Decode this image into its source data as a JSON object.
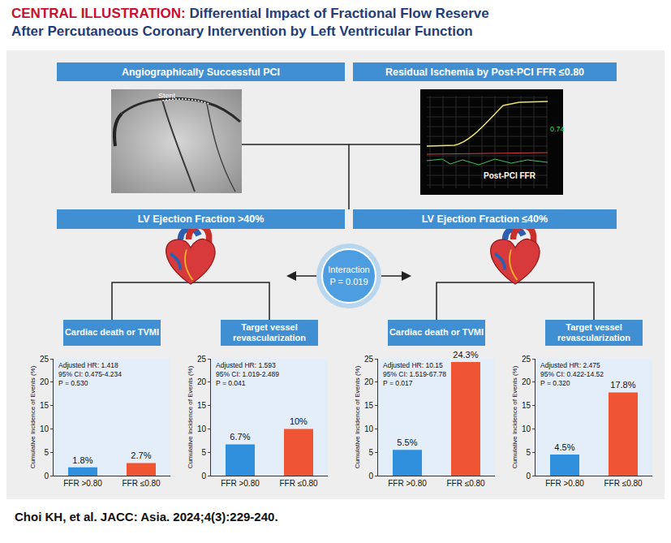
{
  "header": {
    "label": "CENTRAL ILLUSTRATION:",
    "title_lines": [
      "Differential Impact of Fractional Flow Reserve",
      "After Percutaneous Coronary Intervention by Left Ventricular Function"
    ]
  },
  "top_banners": [
    "Angiographically Successful PCI",
    "Residual Ischemia by Post-PCI FFR ≤0.80"
  ],
  "images": {
    "angiogram_label": "Stent",
    "monitor_label": "Post-PCI FFR",
    "monitor_value": "0.74"
  },
  "lv_banners": [
    "LV Ejection Fraction >40%",
    "LV Ejection Fraction ≤40%"
  ],
  "interaction": {
    "label": "Interaction",
    "p": "P = 0.019"
  },
  "chart_data": [
    {
      "type": "bar",
      "title": "Cardiac death or TVMI",
      "categories": [
        "FFR >0.80",
        "FFR ≤0.80"
      ],
      "values": [
        1.8,
        2.7
      ],
      "value_labels": [
        "1.8%",
        "2.7%"
      ],
      "colors": [
        "#2f8fdd",
        "#ef5533"
      ],
      "ylim": [
        0,
        25
      ],
      "yticks": [
        0,
        5,
        10,
        15,
        20,
        25
      ],
      "ylabel": "Cumulative Incidence of Events (%)",
      "annotations": [
        "Adjusted HR: 1.418",
        "95% CI: 0.475-4.234",
        "P = 0.530"
      ],
      "data_labels": true
    },
    {
      "type": "bar",
      "title": "Target vessel revascularization",
      "categories": [
        "FFR >0.80",
        "FFR ≤0.80"
      ],
      "values": [
        6.7,
        10
      ],
      "value_labels": [
        "6.7%",
        "10%"
      ],
      "colors": [
        "#2f8fdd",
        "#ef5533"
      ],
      "ylim": [
        0,
        25
      ],
      "yticks": [
        0,
        5,
        10,
        15,
        20,
        25
      ],
      "ylabel": "Cumulative Incidence of Events (%)",
      "annotations": [
        "Adjusted HR: 1.593",
        "95% CI: 1.019-2.489",
        "P = 0.041"
      ],
      "data_labels": true
    },
    {
      "type": "bar",
      "title": "Cardiac death or TVMI",
      "categories": [
        "FFR >0.80",
        "FFR ≤0.80"
      ],
      "values": [
        5.5,
        24.3
      ],
      "value_labels": [
        "5.5%",
        "24.3%"
      ],
      "colors": [
        "#2f8fdd",
        "#ef5533"
      ],
      "ylim": [
        0,
        25
      ],
      "yticks": [
        0,
        5,
        10,
        15,
        20,
        25
      ],
      "ylabel": "Cumulative Incidence of Events (%)",
      "annotations": [
        "Adjusted HR: 10.15",
        "95% CI: 1.519-67.78",
        "P = 0.017"
      ],
      "data_labels": true
    },
    {
      "type": "bar",
      "title": "Target vessel revascularization",
      "categories": [
        "FFR >0.80",
        "FFR ≤0.80"
      ],
      "values": [
        4.5,
        17.8
      ],
      "value_labels": [
        "4.5%",
        "17.8%"
      ],
      "colors": [
        "#2f8fdd",
        "#ef5533"
      ],
      "ylim": [
        0,
        25
      ],
      "yticks": [
        0,
        5,
        10,
        15,
        20,
        25
      ],
      "ylabel": "Cumulative Incidence of Events (%)",
      "annotations": [
        "Adjusted HR: 2.475",
        "95% CI: 0.422-14.52",
        "P = 0.320"
      ],
      "data_labels": true
    }
  ],
  "footer": "Choi KH, et al. JACC: Asia. 2024;4(3):229-240."
}
